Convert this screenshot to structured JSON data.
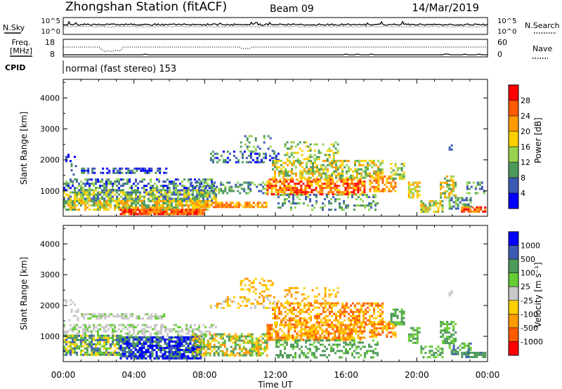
{
  "header": {
    "station": "Zhongshan Station (fitACF)",
    "beam": "Beam 09",
    "date": "14/Mar/2019"
  },
  "top_panels": {
    "nsky_label": "N.Sky",
    "nsearch_label": "N.Search",
    "freq_label": "Freq.",
    "freq_unit": "[MHz]",
    "nave_label": "Nave",
    "cpid_label": "CPID",
    "cpid_text": "normal (fast stereo) 153",
    "noise_ticks": [
      "10^5",
      "10^0"
    ],
    "freq_ticks": [
      "18",
      "8"
    ],
    "nave_ticks": [
      "60",
      "0"
    ]
  },
  "chart_data": [
    {
      "type": "heatmap",
      "name": "power",
      "ylabel": "Slant Range [km]",
      "xlim": [
        "00:00",
        "24:00"
      ],
      "ylim": [
        180,
        4600
      ],
      "y_ticks": [
        1000,
        2000,
        3000,
        4000
      ],
      "colorbar_label": "Power [dB]",
      "colorbar_ticks": [
        "28",
        "24",
        "20",
        "16",
        "12",
        "8",
        "4"
      ],
      "colorbar_colors": [
        "#ff0000",
        "#ff5a00",
        "#ff9a00",
        "#ffd000",
        "#96d250",
        "#4e9a5a",
        "#3c5ab4",
        "#0000ff"
      ]
    },
    {
      "type": "heatmap",
      "name": "velocity",
      "ylabel": "Slant Range [km]",
      "xlabel": "Time UT",
      "xlim": [
        "00:00",
        "24:00"
      ],
      "ylim": [
        180,
        4600
      ],
      "x_ticks": [
        "00:00",
        "04:00",
        "08:00",
        "12:00",
        "16:00",
        "20:00",
        "00:00"
      ],
      "y_ticks": [
        1000,
        2000,
        3000,
        4000
      ],
      "colorbar_label": "Velocity [m s⁻¹]",
      "colorbar_ticks": [
        "1000",
        "500",
        "100",
        "25",
        "-25",
        "-100",
        "-500",
        "-1000"
      ],
      "colorbar_colors": [
        "#0000ff",
        "#3c5ab4",
        "#4e9a5a",
        "#66cc33",
        "#c8c8c8",
        "#ffd000",
        "#ff9a00",
        "#ff5a00",
        "#ff0000"
      ]
    }
  ]
}
